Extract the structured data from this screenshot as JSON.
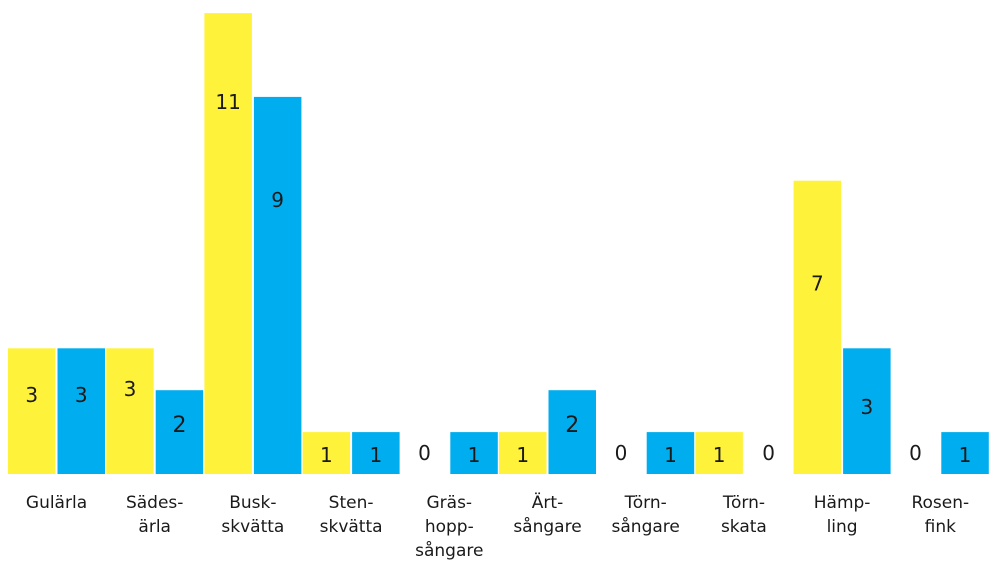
{
  "chart_data": {
    "type": "bar",
    "categories": [
      [
        "Gulärla"
      ],
      [
        "Sädes-",
        "ärla"
      ],
      [
        "Busk-",
        "skvätta"
      ],
      [
        "Sten-",
        "skvätta"
      ],
      [
        "Gräs-",
        "hopp-",
        "sångare"
      ],
      [
        "Ärt-",
        "sångare"
      ],
      [
        "Törn-",
        "sångare"
      ],
      [
        "Törn-",
        "skata"
      ],
      [
        "Hämp-",
        "ling"
      ],
      [
        "Rosen-",
        "fink"
      ]
    ],
    "series": [
      {
        "values": [
          3,
          3,
          11,
          1,
          0,
          1,
          0,
          1,
          7,
          0
        ],
        "labels": [
          "3",
          "3",
          "11",
          "1",
          "0",
          "1",
          "0",
          "1",
          "7",
          "0"
        ]
      },
      {
        "values": [
          3,
          2,
          9,
          1,
          1,
          2,
          1,
          0,
          3,
          1
        ],
        "labels": [
          "3",
          "2",
          "9",
          "1",
          "1",
          "2",
          "1",
          "0",
          "3",
          "1"
        ]
      }
    ],
    "colors": [
      "#FFF23A",
      "#00AEEF"
    ],
    "ylim": [
      0,
      11
    ],
    "grid": false,
    "legend": "none",
    "xlabel": "",
    "ylabel": ""
  }
}
